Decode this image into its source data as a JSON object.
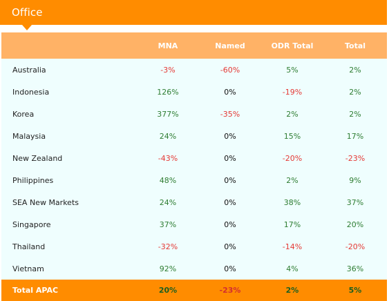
{
  "title": "Office",
  "table": {
    "columns": [
      "MNA",
      "Named",
      "ODR Total",
      "Total"
    ],
    "rows": [
      {
        "name": "Australia",
        "mna": "-3%",
        "named": "-60%",
        "odr_total": "5%",
        "total": "2%"
      },
      {
        "name": "Indonesia",
        "mna": "126%",
        "named": "0%",
        "odr_total": "-19%",
        "total": "2%"
      },
      {
        "name": "Korea",
        "mna": "377%",
        "named": "-35%",
        "odr_total": "2%",
        "total": "2%"
      },
      {
        "name": "Malaysia",
        "mna": "24%",
        "named": "0%",
        "odr_total": "15%",
        "total": "17%"
      },
      {
        "name": "New Zealand",
        "mna": "-43%",
        "named": "0%",
        "odr_total": "-20%",
        "total": "-23%"
      },
      {
        "name": "Philippines",
        "mna": "48%",
        "named": "0%",
        "odr_total": "2%",
        "total": "9%"
      },
      {
        "name": "SEA New Markets",
        "mna": "24%",
        "named": "0%",
        "odr_total": "38%",
        "total": "37%"
      },
      {
        "name": "Singapore",
        "mna": "37%",
        "named": "0%",
        "odr_total": "17%",
        "total": "20%"
      },
      {
        "name": "Thailand",
        "mna": "-32%",
        "named": "0%",
        "odr_total": "-14%",
        "total": "-20%"
      },
      {
        "name": "Vietnam",
        "mna": "92%",
        "named": "0%",
        "odr_total": "4%",
        "total": "36%"
      }
    ],
    "total_row": {
      "name": "Total APAC",
      "mna": "20%",
      "named": "-23%",
      "odr_total": "2%",
      "total": "5%"
    }
  },
  "colors": {
    "accent": "#ff8c00",
    "header_bg": "#ffb266",
    "panel_bg": "#effefe",
    "positive": "#2e7d32",
    "negative": "#e53935"
  }
}
